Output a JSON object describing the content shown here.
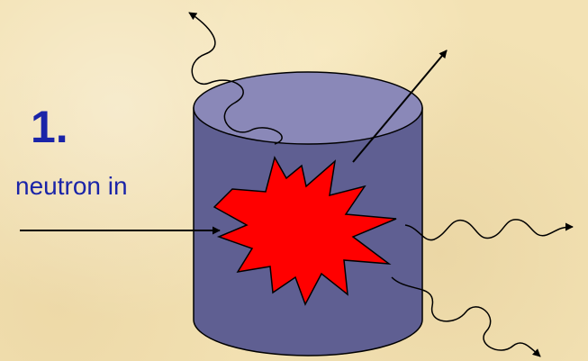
{
  "diagram": {
    "step_label": "1.",
    "neutron_label": "neutron in",
    "colors": {
      "background": "#f3e2b4",
      "text": "#1a24a8",
      "cylinder_body": "#5f5f92",
      "cylinder_top": "#8a88b8",
      "explosion": "#ff0000",
      "arrows": "#000000"
    },
    "icons": [
      "explosion-burst",
      "wavy-gamma-ray-arrow",
      "straight-particle-arrow"
    ]
  }
}
